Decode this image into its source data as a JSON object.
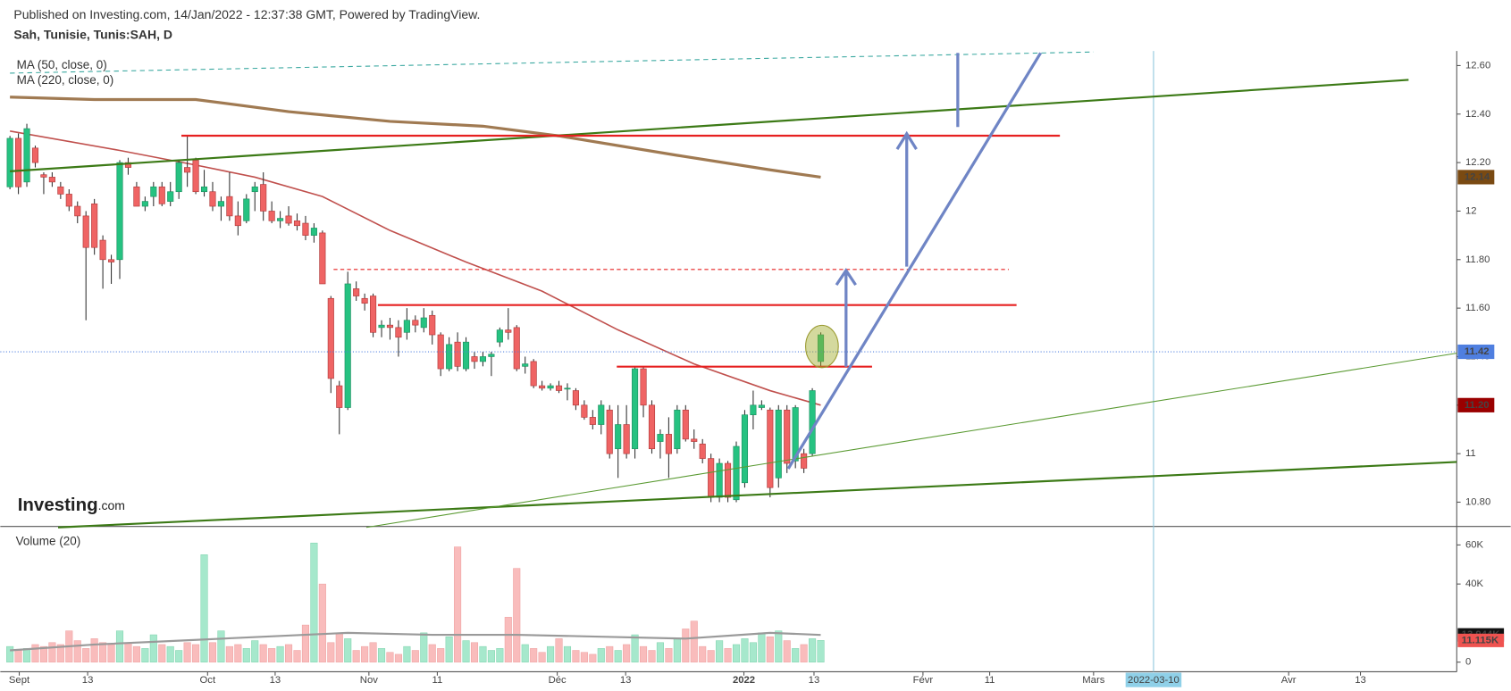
{
  "header": {
    "published": "Published on Investing.com, 14/Jan/2022 - 12:37:38 GMT, Powered by TradingView.",
    "symbol": "Sah, Tunisie, Tunis:SAH, D"
  },
  "logo": {
    "brand": "Investing",
    "suffix": ".com"
  },
  "chart_data": [
    {
      "type": "candlestick",
      "up_color": "#26c281",
      "down_color": "#ef6464",
      "open": [
        12.1,
        12.3,
        12.12,
        12.26,
        12.15,
        12.14,
        12.1,
        12.07,
        12.02,
        11.98,
        12.03,
        11.88,
        11.8,
        11.8,
        12.2,
        12.1,
        12.02,
        12.06,
        12.1,
        12.04,
        12.08,
        12.18,
        12.21,
        12.08,
        12.08,
        12.02,
        12.06,
        11.98,
        11.96,
        12.08,
        12.11,
        12.0,
        11.96,
        11.98,
        11.96,
        11.95,
        11.9,
        11.91,
        11.64,
        11.28,
        11.19,
        11.68,
        11.64,
        11.65,
        11.52,
        11.53,
        11.52,
        11.5,
        11.55,
        11.52,
        11.57,
        11.49,
        11.35,
        11.46,
        11.35,
        11.4,
        11.38,
        11.4,
        11.46,
        11.51,
        11.52,
        11.36,
        11.38,
        11.28,
        11.27,
        11.28,
        11.27,
        11.26,
        11.2,
        11.15,
        11.12,
        11.18,
        11.02,
        11.12,
        11.02,
        11.35,
        11.2,
        11.05,
        11.08,
        11.02,
        11.18,
        11.06,
        11.04,
        10.98,
        10.82,
        10.96,
        10.81,
        10.88,
        11.16,
        11.19,
        11.18,
        10.9,
        11.18,
        10.97,
        11.0,
        11.0,
        11.38
      ],
      "high": [
        12.31,
        12.32,
        12.36,
        12.27,
        12.16,
        12.16,
        12.12,
        12.09,
        12.04,
        12.0,
        12.05,
        11.9,
        11.82,
        12.21,
        12.22,
        12.12,
        12.06,
        12.12,
        12.12,
        12.12,
        12.21,
        12.31,
        12.22,
        12.17,
        12.12,
        12.06,
        12.16,
        12.04,
        12.07,
        12.12,
        12.16,
        12.04,
        12.0,
        12.02,
        11.99,
        11.98,
        11.95,
        11.92,
        11.65,
        11.3,
        11.75,
        11.71,
        11.66,
        11.66,
        11.55,
        11.56,
        11.55,
        11.6,
        11.57,
        11.6,
        11.59,
        11.5,
        11.48,
        11.5,
        11.48,
        11.42,
        11.42,
        11.42,
        11.52,
        11.6,
        11.53,
        11.4,
        11.39,
        11.3,
        11.29,
        11.3,
        11.29,
        11.27,
        11.22,
        11.18,
        11.22,
        11.2,
        11.2,
        11.2,
        11.36,
        11.36,
        11.22,
        11.1,
        11.15,
        11.2,
        11.2,
        11.1,
        11.06,
        11.0,
        10.98,
        10.97,
        11.05,
        11.18,
        11.26,
        11.22,
        11.19,
        11.2,
        11.2,
        11.2,
        11.02,
        11.27,
        11.5
      ],
      "low": [
        12.09,
        12.07,
        12.1,
        12.18,
        12.07,
        12.1,
        12.05,
        12.0,
        11.95,
        11.55,
        11.82,
        11.68,
        11.7,
        11.72,
        12.15,
        12.02,
        12.0,
        12.02,
        12.02,
        12.02,
        12.05,
        12.1,
        12.07,
        12.06,
        12.0,
        11.96,
        11.96,
        11.9,
        11.95,
        12.0,
        11.96,
        11.95,
        11.93,
        11.94,
        11.92,
        11.88,
        11.87,
        11.7,
        11.25,
        11.08,
        11.18,
        11.63,
        11.59,
        11.48,
        11.48,
        11.47,
        11.4,
        11.47,
        11.5,
        11.5,
        11.45,
        11.32,
        11.34,
        11.34,
        11.34,
        11.35,
        11.36,
        11.32,
        11.44,
        11.47,
        11.34,
        11.33,
        11.27,
        11.26,
        11.26,
        11.25,
        11.22,
        11.18,
        11.14,
        11.1,
        11.08,
        10.98,
        10.9,
        10.98,
        10.98,
        11.15,
        11.0,
        10.98,
        10.9,
        11.0,
        11.05,
        11.02,
        10.96,
        10.8,
        10.8,
        10.8,
        10.8,
        10.86,
        11.1,
        11.18,
        10.82,
        10.86,
        10.92,
        10.94,
        10.92,
        10.99,
        11.36
      ],
      "close": [
        12.3,
        12.1,
        12.34,
        12.2,
        12.14,
        12.12,
        12.07,
        12.02,
        11.98,
        11.85,
        11.85,
        11.8,
        11.79,
        12.2,
        12.18,
        12.02,
        12.04,
        12.1,
        12.03,
        12.08,
        12.2,
        12.16,
        12.08,
        12.1,
        12.02,
        12.04,
        11.98,
        11.94,
        12.05,
        12.1,
        12.0,
        11.96,
        11.97,
        11.95,
        11.94,
        11.9,
        11.93,
        11.7,
        11.31,
        11.19,
        11.7,
        11.65,
        11.62,
        11.5,
        11.53,
        11.52,
        11.48,
        11.55,
        11.53,
        11.56,
        11.49,
        11.35,
        11.45,
        11.36,
        11.46,
        11.38,
        11.4,
        11.41,
        11.51,
        11.5,
        11.35,
        11.37,
        11.28,
        11.27,
        11.28,
        11.26,
        11.27,
        11.2,
        11.15,
        11.12,
        11.2,
        11.0,
        11.12,
        11.0,
        11.35,
        11.2,
        11.02,
        11.08,
        11.0,
        11.18,
        11.06,
        11.05,
        10.98,
        10.82,
        10.96,
        10.82,
        11.03,
        11.16,
        11.2,
        11.2,
        10.86,
        11.18,
        10.96,
        11.19,
        10.94,
        11.26,
        11.49
      ],
      "series": [
        {
          "name": "MA (50, close, 0)",
          "color": "#c0504d",
          "x": [
            0,
            13,
            22,
            29,
            37,
            45,
            54,
            63,
            72,
            81,
            90,
            96
          ],
          "values": [
            12.33,
            12.25,
            12.19,
            12.14,
            12.06,
            11.92,
            11.79,
            11.67,
            11.51,
            11.37,
            11.26,
            11.2
          ]
        },
        {
          "name": "MA (220, close, 0)",
          "color": "#a07a52",
          "x": [
            0,
            10,
            22,
            33,
            45,
            56,
            65,
            79,
            90,
            96
          ],
          "values": [
            12.47,
            12.46,
            12.46,
            12.41,
            12.37,
            12.35,
            12.31,
            12.23,
            12.17,
            12.14
          ]
        }
      ],
      "tags": [
        {
          "value": 12.14,
          "color": "#7a4a12"
        },
        {
          "value": 11.42,
          "color": "#4f7fe0"
        },
        {
          "value": 11.2,
          "label": "11.20",
          "color": "#9a0000"
        }
      ],
      "xlim": [
        -1.14,
        171.3
      ],
      "xticks": [
        {
          "value": 1.1,
          "label": "Sept"
        },
        {
          "value": 9.2,
          "label": "13"
        },
        {
          "value": 23.4,
          "label": "Oct"
        },
        {
          "value": 31.4,
          "label": "13"
        },
        {
          "value": 42.5,
          "label": "Nov"
        },
        {
          "value": 50.6,
          "label": "11"
        },
        {
          "value": 64.8,
          "label": "Déc"
        },
        {
          "value": 72.9,
          "label": "13"
        },
        {
          "value": 86.9,
          "label": "2022"
        },
        {
          "value": 95.2,
          "label": "13"
        },
        {
          "value": 108.1,
          "label": "Févr"
        },
        {
          "value": 116,
          "label": "11"
        },
        {
          "value": 128.3,
          "label": "Mars"
        },
        {
          "value": 151.4,
          "label": "Avr"
        },
        {
          "value": 159.9,
          "label": "13"
        }
      ],
      "cursor": {
        "value": 135.4,
        "label": "2022-03-10"
      },
      "ylim": [
        10.7,
        12.66
      ],
      "yticks": [
        {
          "value": 10.8,
          "label": "10.80"
        },
        11,
        {
          "value": 11.2,
          "label": "11.20"
        },
        {
          "value": 11.4,
          "label": "11.40"
        },
        {
          "value": 11.6,
          "label": "11.60"
        },
        {
          "value": 11.8,
          "label": "11.80"
        },
        12,
        {
          "value": 12.2,
          "label": "12.20"
        },
        {
          "value": 12.4,
          "label": "12.40"
        },
        {
          "value": 12.6,
          "label": "12.60"
        }
      ]
    },
    {
      "type": "bar",
      "title": "Volume (20)",
      "up_color": "#a6e8cc",
      "down_color": "#f9bcbc",
      "values": [
        8000,
        6000,
        7000,
        9000,
        8000,
        10000,
        9000,
        16000,
        11000,
        7000,
        12000,
        10000,
        9000,
        16000,
        10000,
        8000,
        7000,
        14000,
        9000,
        8000,
        6000,
        10000,
        9000,
        55000,
        10000,
        16000,
        8000,
        9000,
        7000,
        11000,
        9000,
        7000,
        8000,
        9000,
        6000,
        19000,
        61000,
        40000,
        10000,
        15000,
        12000,
        6000,
        8000,
        10000,
        7000,
        5000,
        4000,
        8000,
        6000,
        15000,
        9000,
        7000,
        13000,
        59000,
        11000,
        10000,
        8000,
        6000,
        7000,
        23000,
        48000,
        9000,
        7000,
        5000,
        8000,
        12000,
        8000,
        6000,
        5000,
        4000,
        7000,
        8000,
        6000,
        9000,
        14000,
        8000,
        6000,
        10000,
        7000,
        12000,
        17000,
        21000,
        8000,
        6000,
        11000,
        7000,
        9000,
        12000,
        10000,
        15000,
        13000,
        16000,
        11000,
        7000,
        9000,
        12000,
        11115
      ],
      "ma": {
        "color": "#9a9a9a",
        "x": [
          0,
          10,
          20,
          30,
          40,
          50,
          60,
          70,
          80,
          90,
          96
        ],
        "values": [
          6000,
          9000,
          11000,
          13000,
          15000,
          14000,
          14000,
          13000,
          12000,
          15000,
          13944
        ]
      },
      "tags": [
        {
          "value": 13944,
          "label": "13.944K",
          "color": "#111111"
        },
        {
          "value": 11115,
          "label": "11.115K",
          "color": "#ef5350"
        }
      ],
      "ylim": [
        0,
        68000
      ],
      "yticks": [
        0,
        {
          "value": 40000,
          "label": "40K"
        },
        {
          "value": 60000,
          "label": "60K"
        }
      ]
    }
  ]
}
